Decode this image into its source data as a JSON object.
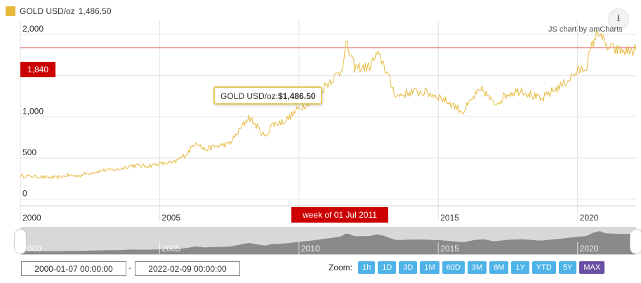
{
  "chart_data": {
    "type": "line",
    "series": [
      {
        "name": "GOLD USD/oz",
        "color": "#e6b93d",
        "x": [
          2000.0,
          2000.5,
          2001.0,
          2001.3,
          2001.7,
          2002.0,
          2002.5,
          2003.0,
          2003.5,
          2004.0,
          2004.5,
          2005.0,
          2005.5,
          2006.0,
          2006.3,
          2006.6,
          2007.0,
          2007.5,
          2008.0,
          2008.2,
          2008.8,
          2009.0,
          2009.5,
          2010.0,
          2010.5,
          2011.0,
          2011.5,
          2011.7,
          2012.0,
          2012.5,
          2012.8,
          2013.0,
          2013.3,
          2013.5,
          2014.0,
          2014.5,
          2015.0,
          2015.5,
          2015.9,
          2016.3,
          2016.6,
          2017.0,
          2017.5,
          2018.0,
          2018.7,
          2019.0,
          2019.5,
          2020.0,
          2020.3,
          2020.6,
          2020.8,
          2021.0,
          2021.5,
          2021.9,
          2022.1
        ],
        "y": [
          285,
          275,
          265,
          260,
          290,
          280,
          320,
          350,
          360,
          410,
          400,
          430,
          440,
          560,
          700,
          600,
          640,
          670,
          900,
          1000,
          750,
          900,
          950,
          1100,
          1220,
          1400,
          1550,
          1880,
          1600,
          1600,
          1750,
          1680,
          1400,
          1250,
          1300,
          1300,
          1250,
          1150,
          1060,
          1250,
          1330,
          1150,
          1280,
          1330,
          1200,
          1290,
          1400,
          1550,
          1600,
          1950,
          2050,
          1850,
          1800,
          1800,
          1820
        ]
      }
    ],
    "title": "",
    "xlabel": "",
    "ylabel": "",
    "x_ticks": [
      {
        "value": 2000,
        "label": "2000"
      },
      {
        "value": 2005,
        "label": "2005"
      },
      {
        "value": 2010,
        "label": ""
      },
      {
        "value": 2015,
        "label": "2015"
      },
      {
        "value": 2020,
        "label": "2020"
      }
    ],
    "y_ticks": [
      {
        "value": 0,
        "label": "0"
      },
      {
        "value": 500,
        "label": "500"
      },
      {
        "value": 1000,
        "label": "1,000"
      },
      {
        "value": 1500,
        "label": "1,500"
      },
      {
        "value": 2000,
        "label": "2,000"
      }
    ],
    "xlim": [
      2000.0,
      2022.1
    ],
    "ylim": [
      -80,
      2180
    ],
    "grid": true,
    "legend": "top-left",
    "guide_line": {
      "value": 1840,
      "label": "1,840",
      "color": "#cc0000"
    },
    "cursor_label": "week of 01 Jul 2011",
    "balloon": {
      "label": "GOLD USD/oz:",
      "value": "$1,486.50"
    },
    "scrollbar_labels": [
      "2000",
      "2005",
      "2010",
      "2015",
      "2020"
    ]
  },
  "legend": {
    "name": "GOLD USD/oz",
    "value": "1,486.50",
    "color": "#e6b93d"
  },
  "credit": "JS chart by amCharts",
  "download_icon": "download-arrow-icon",
  "period_selector": {
    "from": "2000-01-07 00:00:00",
    "separator": "-",
    "to": "2022-02-09 00:00:00",
    "zoom_label": "Zoom:",
    "buttons": [
      {
        "label": "1h",
        "active": false
      },
      {
        "label": "1D",
        "active": false
      },
      {
        "label": "3D",
        "active": false
      },
      {
        "label": "1M",
        "active": false
      },
      {
        "label": "60D",
        "active": false
      },
      {
        "label": "3M",
        "active": false
      },
      {
        "label": "6M",
        "active": false
      },
      {
        "label": "1Y",
        "active": false
      },
      {
        "label": "YTD",
        "active": false
      },
      {
        "label": "5Y",
        "active": false
      },
      {
        "label": "MAX",
        "active": true
      }
    ]
  }
}
